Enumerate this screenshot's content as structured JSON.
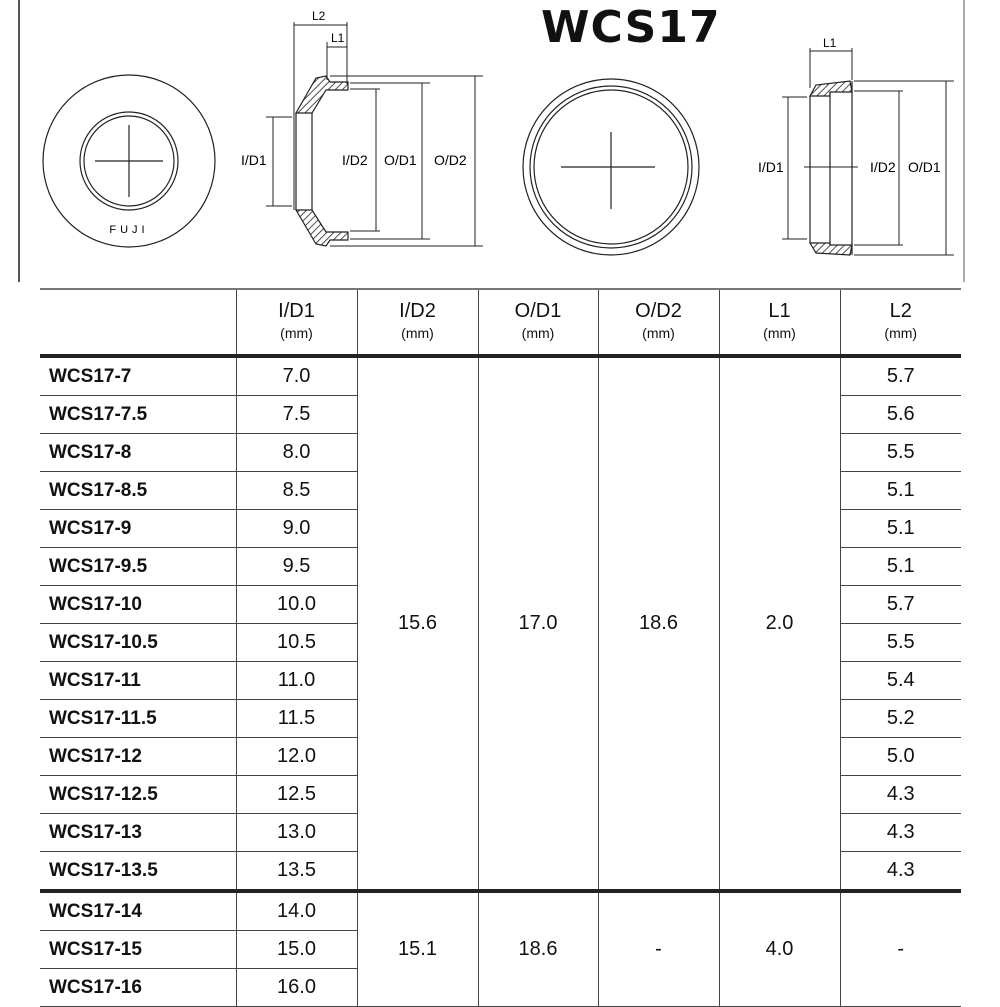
{
  "title": "WCS17",
  "diagram": {
    "fuji_label": "FUJI",
    "labels_left": {
      "l2": "L2",
      "l1": "L1",
      "id1": "I/D1",
      "id2": "I/D2",
      "od1": "O/D1",
      "od2": "O/D2"
    },
    "labels_right": {
      "l1": "L1",
      "id1": "I/D1",
      "id2": "I/D2",
      "od1": "O/D1"
    }
  },
  "table": {
    "headers": [
      {
        "label": "",
        "unit": ""
      },
      {
        "label": "I/D1",
        "unit": "(mm)"
      },
      {
        "label": "I/D2",
        "unit": "(mm)"
      },
      {
        "label": "O/D1",
        "unit": "(mm)"
      },
      {
        "label": "O/D2",
        "unit": "(mm)"
      },
      {
        "label": "L1",
        "unit": "(mm)"
      },
      {
        "label": "L2",
        "unit": "(mm)"
      }
    ],
    "groups": [
      {
        "id2": "15.6",
        "od1": "17.0",
        "od2": "18.6",
        "l1": "2.0",
        "rows": [
          {
            "model": "WCS17-7",
            "id1": "7.0",
            "l2": "5.7"
          },
          {
            "model": "WCS17-7.5",
            "id1": "7.5",
            "l2": "5.6"
          },
          {
            "model": "WCS17-8",
            "id1": "8.0",
            "l2": "5.5"
          },
          {
            "model": "WCS17-8.5",
            "id1": "8.5",
            "l2": "5.1"
          },
          {
            "model": "WCS17-9",
            "id1": "9.0",
            "l2": "5.1"
          },
          {
            "model": "WCS17-9.5",
            "id1": "9.5",
            "l2": "5.1"
          },
          {
            "model": "WCS17-10",
            "id1": "10.0",
            "l2": "5.7"
          },
          {
            "model": "WCS17-10.5",
            "id1": "10.5",
            "l2": "5.5"
          },
          {
            "model": "WCS17-11",
            "id1": "11.0",
            "l2": "5.4"
          },
          {
            "model": "WCS17-11.5",
            "id1": "11.5",
            "l2": "5.2"
          },
          {
            "model": "WCS17-12",
            "id1": "12.0",
            "l2": "5.0"
          },
          {
            "model": "WCS17-12.5",
            "id1": "12.5",
            "l2": "4.3"
          },
          {
            "model": "WCS17-13",
            "id1": "13.0",
            "l2": "4.3"
          },
          {
            "model": "WCS17-13.5",
            "id1": "13.5",
            "l2": "4.3"
          }
        ]
      },
      {
        "id2": "15.1",
        "od1": "18.6",
        "od2": "-",
        "l1": "4.0",
        "l2": "-",
        "rows": [
          {
            "model": "WCS17-14",
            "id1": "14.0"
          },
          {
            "model": "WCS17-15",
            "id1": "15.0"
          },
          {
            "model": "WCS17-16",
            "id1": "16.0"
          }
        ]
      }
    ]
  }
}
